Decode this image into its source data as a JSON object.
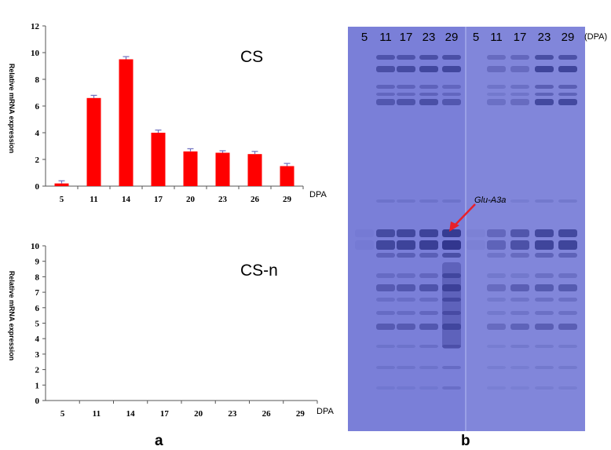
{
  "panels": {
    "a_label": "a",
    "b_label": "b"
  },
  "chart_data": [
    {
      "type": "bar",
      "title": "CS",
      "xlabel": "DPA",
      "ylabel": "Relative mRNA expression",
      "categories": [
        "5",
        "11",
        "14",
        "17",
        "20",
        "23",
        "26",
        "29"
      ],
      "values": [
        0.2,
        6.6,
        9.5,
        4.0,
        2.6,
        2.5,
        2.4,
        1.5
      ],
      "errors": [
        0.2,
        0.2,
        0.2,
        0.2,
        0.2,
        0.15,
        0.2,
        0.2
      ],
      "yticks": [
        0,
        2,
        4,
        6,
        8,
        10,
        12
      ],
      "ylim": [
        0,
        12
      ],
      "bar_color": "#ff0000",
      "error_color": "#7070c0",
      "grid": false
    },
    {
      "type": "bar",
      "title": "CS-n",
      "xlabel": "DPA",
      "ylabel": "Relative mRNA expression",
      "categories": [
        "5",
        "11",
        "14",
        "17",
        "20",
        "23",
        "26",
        "29"
      ],
      "values": [
        0,
        0,
        0,
        0,
        0,
        0,
        0,
        0
      ],
      "yticks": [
        0,
        1,
        2,
        3,
        4,
        5,
        6,
        7,
        8,
        9,
        10
      ],
      "ylim": [
        0,
        10
      ],
      "bar_color": "#ff0000",
      "grid": false
    }
  ],
  "gel": {
    "lanes": [
      "5",
      "11",
      "17",
      "23",
      "29",
      "5",
      "11",
      "17",
      "23",
      "29"
    ],
    "unit_label": "(DPA)",
    "annotation": "Glu-A3a",
    "gel_color": "#7a7fd8",
    "band_color": "#2a2f86",
    "arrow_color": "#e8202a"
  }
}
